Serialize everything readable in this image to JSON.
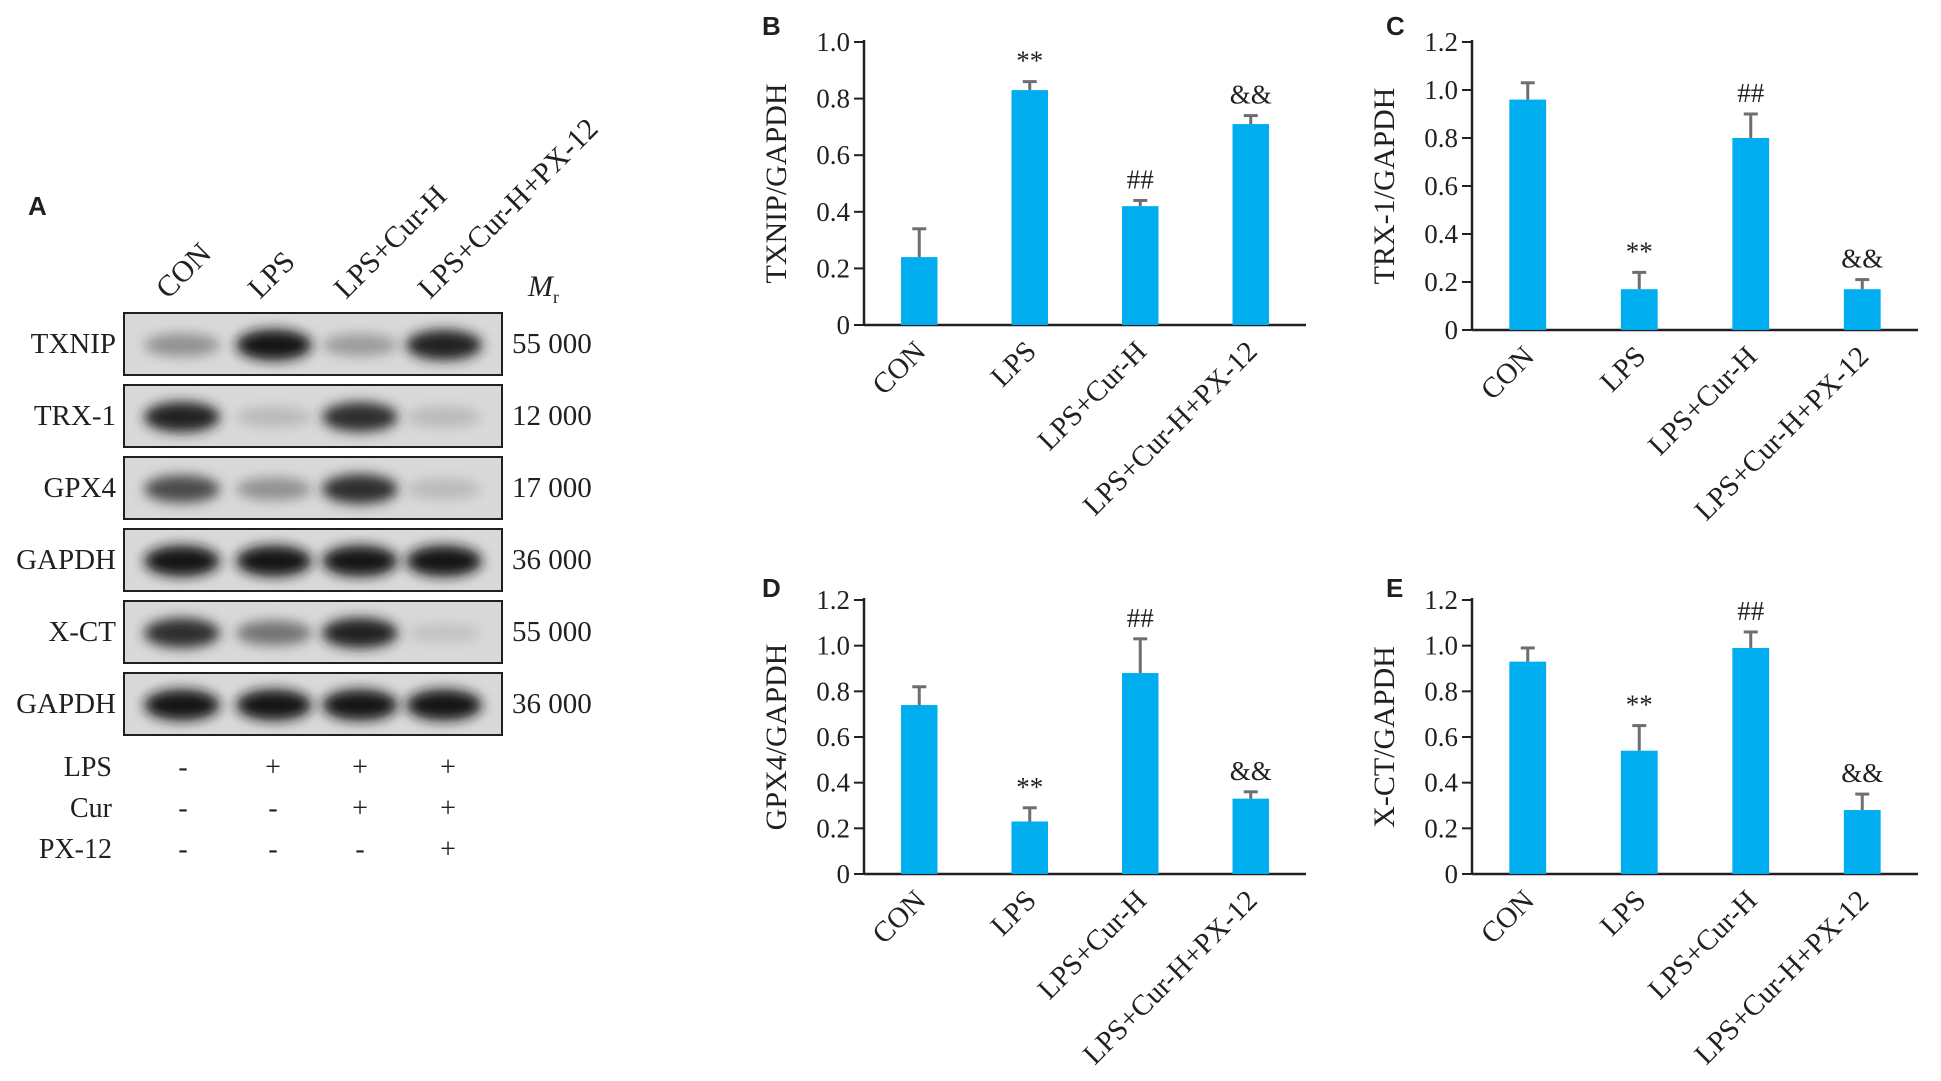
{
  "panels": {
    "A": {
      "letter": "A",
      "lanes": [
        "CON",
        "LPS",
        "LPS+Cur-H",
        "LPS+Cur-H+PX-12"
      ],
      "mr_label": "M",
      "mr_subscript": "r",
      "blots": [
        {
          "protein": "TXNIP",
          "mr": "55 000",
          "intensities": [
            0.35,
            0.95,
            0.3,
            0.9
          ]
        },
        {
          "protein": "TRX-1",
          "mr": "12 000",
          "intensities": [
            0.9,
            0.15,
            0.85,
            0.15
          ]
        },
        {
          "protein": "GPX4",
          "mr": "17 000",
          "intensities": [
            0.7,
            0.35,
            0.85,
            0.15
          ]
        },
        {
          "protein": "GAPDH",
          "mr": "36 000",
          "intensities": [
            0.95,
            0.95,
            0.95,
            0.95
          ]
        },
        {
          "protein": "X-CT",
          "mr": "55 000",
          "intensities": [
            0.85,
            0.5,
            0.9,
            0.1
          ]
        },
        {
          "protein": "GAPDH",
          "mr": "36 000",
          "intensities": [
            0.95,
            0.95,
            0.95,
            0.95
          ]
        }
      ],
      "treatments": [
        {
          "name": "LPS",
          "signs": [
            "-",
            "+",
            "+",
            "+"
          ]
        },
        {
          "name": "Cur",
          "signs": [
            "-",
            "-",
            "+",
            "+"
          ]
        },
        {
          "name": "PX-12",
          "signs": [
            "-",
            "-",
            "-",
            "+"
          ]
        }
      ]
    }
  },
  "chart_data": [
    {
      "panel": "B",
      "type": "bar",
      "categories": [
        "CON",
        "LPS",
        "LPS+Cur-H",
        "LPS+Cur-H+PX-12"
      ],
      "values": [
        0.24,
        0.83,
        0.42,
        0.71
      ],
      "errors": [
        0.1,
        0.03,
        0.02,
        0.03
      ],
      "annotations": [
        "",
        "**",
        "##",
        "&&"
      ],
      "ylabel": "TXNIP/GAPDH",
      "ylim": [
        0,
        1.0
      ],
      "yticks": [
        "0",
        "0.2",
        "0.4",
        "0.6",
        "0.8",
        "1.0"
      ],
      "bar_color": "#00aeef"
    },
    {
      "panel": "C",
      "type": "bar",
      "categories": [
        "CON",
        "LPS",
        "LPS+Cur-H",
        "LPS+Cur-H+PX-12"
      ],
      "values": [
        0.96,
        0.17,
        0.8,
        0.17
      ],
      "errors": [
        0.07,
        0.07,
        0.1,
        0.04
      ],
      "annotations": [
        "",
        "**",
        "##",
        "&&"
      ],
      "ylabel": "TRX-1/GAPDH",
      "ylim": [
        0,
        1.2
      ],
      "yticks": [
        "0",
        "0.2",
        "0.4",
        "0.6",
        "0.8",
        "1.0",
        "1.2"
      ],
      "bar_color": "#00aeef"
    },
    {
      "panel": "D",
      "type": "bar",
      "categories": [
        "CON",
        "LPS",
        "LPS+Cur-H",
        "LPS+Cur-H+PX-12"
      ],
      "values": [
        0.74,
        0.23,
        0.88,
        0.33
      ],
      "errors": [
        0.08,
        0.06,
        0.15,
        0.03
      ],
      "annotations": [
        "",
        "**",
        "##",
        "&&"
      ],
      "ylabel": "GPX4/GAPDH",
      "ylim": [
        0,
        1.2
      ],
      "yticks": [
        "0",
        "0.2",
        "0.4",
        "0.6",
        "0.8",
        "1.0",
        "1.2"
      ],
      "bar_color": "#00aeef"
    },
    {
      "panel": "E",
      "type": "bar",
      "categories": [
        "CON",
        "LPS",
        "LPS+Cur-H",
        "LPS+Cur-H+PX-12"
      ],
      "values": [
        0.93,
        0.54,
        0.99,
        0.28
      ],
      "errors": [
        0.06,
        0.11,
        0.07,
        0.07
      ],
      "annotations": [
        "",
        "**",
        "##",
        "&&"
      ],
      "ylabel": "X-CT/GAPDH",
      "ylim": [
        0,
        1.2
      ],
      "yticks": [
        "0",
        "0.2",
        "0.4",
        "0.6",
        "0.8",
        "1.0",
        "1.2"
      ],
      "bar_color": "#00aeef"
    }
  ]
}
